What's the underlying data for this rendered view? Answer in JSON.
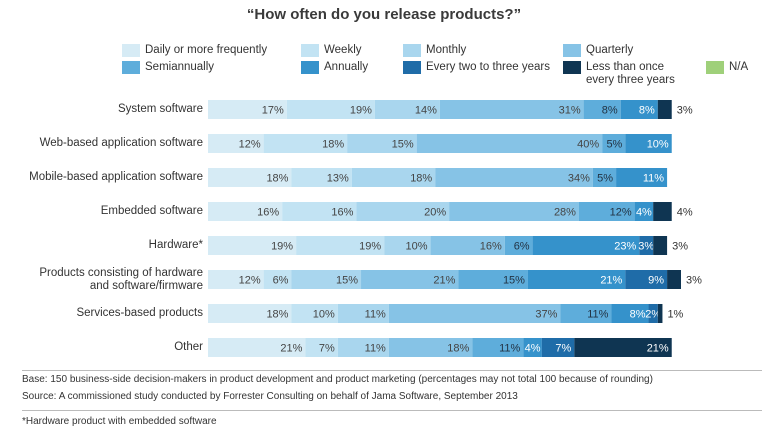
{
  "chart_data": {
    "type": "bar",
    "orientation": "horizontal",
    "stacked": true,
    "title": "“How often do you release products?”",
    "categories": [
      "System software",
      "Web-based application software",
      "Mobile-based application software",
      "Embedded software",
      "Hardware*",
      "Products consisting of hardware\nand software/firmware",
      "Services-based products",
      "Other"
    ],
    "series": [
      {
        "name": "Daily or more frequently",
        "color": "#d6ebf5",
        "values": [
          17,
          12,
          18,
          16,
          19,
          12,
          18,
          21
        ]
      },
      {
        "name": "Weekly",
        "color": "#c2e3f3",
        "values": [
          19,
          18,
          13,
          16,
          19,
          6,
          10,
          7
        ]
      },
      {
        "name": "Monthly",
        "color": "#a9d6ee",
        "values": [
          14,
          15,
          18,
          20,
          10,
          15,
          11,
          11
        ]
      },
      {
        "name": "Quarterly",
        "color": "#86c3e6",
        "values": [
          31,
          40,
          34,
          28,
          16,
          21,
          37,
          18
        ]
      },
      {
        "name": "Semiannually",
        "color": "#5eaddb",
        "values": [
          8,
          5,
          5,
          12,
          6,
          15,
          11,
          11
        ]
      },
      {
        "name": "Annually",
        "color": "#3592cb",
        "values": [
          8,
          10,
          11,
          4,
          23,
          21,
          8,
          4
        ]
      },
      {
        "name": "Every two to three years",
        "color": "#1f6ca8",
        "values": [
          0,
          0,
          0,
          0,
          3,
          9,
          2,
          7
        ]
      },
      {
        "name": "Less than once\nevery three years",
        "color": "#0f3552",
        "values": [
          3,
          0,
          0,
          4,
          3,
          3,
          1,
          21
        ]
      },
      {
        "name": "N/A",
        "color": "#9fd07a",
        "values": [
          0,
          0,
          0,
          0,
          0,
          0,
          0,
          0
        ]
      }
    ],
    "data_labels": [
      [
        "17%",
        "19%",
        "14%",
        "31%",
        "8%",
        "8%",
        "",
        "3%",
        ""
      ],
      [
        "12%",
        "18%",
        "15%",
        "40%",
        "5%",
        "10%",
        "",
        "",
        ""
      ],
      [
        "18%",
        "13%",
        "18%",
        "34%",
        "5%",
        "11%",
        "",
        "",
        ""
      ],
      [
        "16%",
        "16%",
        "20%",
        "28%",
        "12%",
        "4%",
        "",
        "4%",
        ""
      ],
      [
        "19%",
        "19%",
        "10%",
        "16%",
        "6%",
        "23%",
        "3%",
        "3%",
        ""
      ],
      [
        "12%",
        "6%",
        "15%",
        "21%",
        "15%",
        "21%",
        "9%",
        "3%",
        ""
      ],
      [
        "18%",
        "10%",
        "11%",
        "37%",
        "11%",
        "8%",
        "2%",
        "1%",
        ""
      ],
      [
        "21%",
        "7%",
        "11%",
        "18%",
        "11%",
        "4%",
        "7%",
        "21%",
        ""
      ]
    ],
    "xlim": [
      0,
      100
    ],
    "grid": false,
    "legend_position": "top"
  },
  "footnotes": {
    "base": "Base: 150 business-side decision-makers in product development and product marketing (percentages may not total 100 because of rounding)",
    "source": "Source: A commissioned study conducted by Forrester Consulting on behalf of Jama Software, September 2013",
    "note": "*Hardware product with embedded software"
  }
}
